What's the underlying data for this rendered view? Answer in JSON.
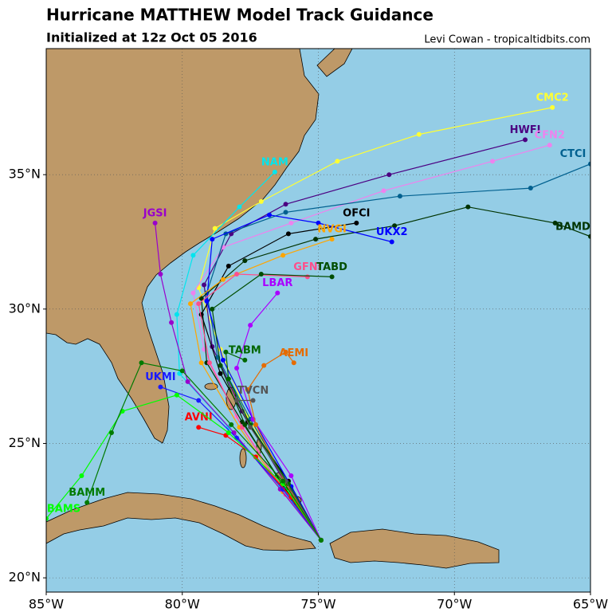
{
  "title": "Hurricane MATTHEW Model Track Guidance",
  "subtitle": "Initialized at 12z Oct 05 2016",
  "credit": "Levi Cowan - tropicaltidbits.com",
  "map": {
    "xlim": [
      -85,
      -65
    ],
    "ylim": [
      19.47,
      39.69
    ],
    "xticks": [
      {
        "value": -85,
        "label": "85°W"
      },
      {
        "value": -80,
        "label": "80°W"
      },
      {
        "value": -75,
        "label": "75°W"
      },
      {
        "value": -70,
        "label": "70°W"
      },
      {
        "value": -65,
        "label": "65°W"
      }
    ],
    "yticks": [
      {
        "value": 20,
        "label": "20°N"
      },
      {
        "value": 25,
        "label": "25°N"
      },
      {
        "value": 30,
        "label": "30°N"
      },
      {
        "value": 35,
        "label": "35°N"
      }
    ],
    "grid": true,
    "tracks": [
      {
        "name": "CMC2",
        "color": "#ffff33",
        "lon": [
          -74.9,
          -76.0,
          -77.6,
          -78.6,
          -79.4,
          -78.8,
          -77.1,
          -74.3,
          -71.3,
          -66.4
        ],
        "lat": [
          21.4,
          23.3,
          26.0,
          28.5,
          30.8,
          33.0,
          34.0,
          35.5,
          36.5,
          37.5
        ]
      },
      {
        "name": "HWFI",
        "color": "#4b0082",
        "lon": [
          -74.9,
          -76.2,
          -77.8,
          -78.9,
          -79.2,
          -78.2,
          -76.2,
          -72.4,
          -67.4
        ],
        "lat": [
          21.4,
          23.5,
          26.2,
          28.6,
          30.9,
          32.8,
          33.9,
          35.0,
          36.3
        ]
      },
      {
        "name": "CFN2",
        "color": "#ee82ee",
        "lon": [
          -74.9,
          -76.4,
          -78.0,
          -79.2,
          -79.6,
          -78.5,
          -76.0,
          -72.6,
          -68.6,
          -66.5
        ],
        "lat": [
          21.4,
          23.4,
          26.0,
          28.5,
          30.6,
          32.3,
          33.2,
          34.4,
          35.5,
          36.1
        ]
      },
      {
        "name": "CTCI",
        "color": "#00608f",
        "lon": [
          -74.9,
          -76.0,
          -77.5,
          -78.7,
          -79.1,
          -78.4,
          -76.2,
          -72.0,
          -67.2,
          -65.0
        ],
        "lat": [
          21.4,
          23.3,
          25.9,
          28.2,
          30.6,
          32.8,
          33.6,
          34.2,
          34.5,
          35.4
        ]
      },
      {
        "name": "BAMD",
        "color": "#003300",
        "lon": [
          -74.9,
          -76.2,
          -77.8,
          -79.1,
          -79.3,
          -77.7,
          -75.1,
          -72.2,
          -69.5,
          -66.3,
          -65.0
        ],
        "lat": [
          21.4,
          23.3,
          25.8,
          28.0,
          30.4,
          31.8,
          32.6,
          33.1,
          33.8,
          33.2,
          32.7
        ]
      },
      {
        "name": "OFCI",
        "color": "#000000",
        "lon": [
          -74.9,
          -76.1,
          -77.6,
          -78.6,
          -79.3,
          -78.3,
          -76.1,
          -73.6
        ],
        "lat": [
          21.4,
          23.6,
          25.8,
          27.6,
          29.8,
          31.6,
          32.8,
          33.2
        ]
      },
      {
        "name": "UKX2",
        "color": "#0000ff",
        "lon": [
          -74.9,
          -76.0,
          -77.4,
          -78.5,
          -79.1,
          -78.9,
          -76.8,
          -75.0,
          -72.3
        ],
        "lat": [
          21.4,
          23.4,
          25.9,
          28.1,
          30.3,
          32.6,
          33.5,
          33.2,
          32.5
        ]
      },
      {
        "name": "NVGI",
        "color": "#ffa500",
        "lon": [
          -74.9,
          -76.3,
          -77.9,
          -79.3,
          -79.7,
          -78.5,
          -76.3,
          -74.5
        ],
        "lat": [
          21.4,
          23.2,
          25.6,
          28.0,
          30.2,
          31.1,
          32.0,
          32.6
        ]
      },
      {
        "name": "GFNI",
        "color": "#ff4f8b",
        "lon": [
          -74.9,
          -76.2,
          -77.8,
          -79.0,
          -79.4,
          -78.0,
          -75.4
        ],
        "lat": [
          21.4,
          23.1,
          25.6,
          28.0,
          30.2,
          31.3,
          31.2
        ]
      },
      {
        "name": "LBAR",
        "color": "#aa00ff",
        "lon": [
          -74.9,
          -76.0,
          -77.4,
          -78.0,
          -77.5,
          -76.5
        ],
        "lat": [
          21.4,
          23.8,
          25.9,
          27.8,
          29.4,
          30.6
        ]
      },
      {
        "name": "TABD",
        "color": "#004d00",
        "lon": [
          -74.9,
          -76.3,
          -77.7,
          -78.6,
          -78.9,
          -77.1,
          -74.5
        ],
        "lat": [
          21.4,
          23.4,
          25.7,
          27.9,
          30.0,
          31.3,
          31.2
        ]
      },
      {
        "name": "AEMI",
        "color": "#e66b00",
        "lon": [
          -74.9,
          -76.2,
          -77.3,
          -77.6,
          -77.0,
          -76.2,
          -75.9
        ],
        "lat": [
          21.4,
          23.5,
          25.7,
          27.0,
          27.9,
          28.4,
          28.0
        ]
      },
      {
        "name": "TABM",
        "color": "#006600",
        "lon": [
          -74.9,
          -76.1,
          -77.5,
          -78.3,
          -78.4,
          -77.7
        ],
        "lat": [
          21.4,
          23.5,
          25.7,
          27.4,
          28.4,
          28.1
        ]
      },
      {
        "name": "TVCN",
        "color": "#555555",
        "lon": [
          -74.9,
          -76.2,
          -77.5,
          -78.0,
          -77.4
        ],
        "lat": [
          21.4,
          23.6,
          25.6,
          26.6,
          26.6
        ]
      },
      {
        "name": "NAM",
        "color": "#00e5ee",
        "lon": [
          -74.9,
          -76.4,
          -78.3,
          -80.1,
          -80.2,
          -79.6,
          -77.9,
          -76.6
        ],
        "lat": [
          21.4,
          23.4,
          25.6,
          27.6,
          29.8,
          32.0,
          33.8,
          35.1
        ]
      },
      {
        "name": "JGSI",
        "color": "#9900cc",
        "lon": [
          -74.9,
          -76.4,
          -78.1,
          -79.8,
          -80.4,
          -80.8,
          -81.0
        ],
        "lat": [
          21.4,
          23.3,
          25.4,
          27.3,
          29.5,
          31.3,
          33.2
        ]
      },
      {
        "name": "UKMI",
        "color": "#1a1aff",
        "lon": [
          -74.9,
          -76.3,
          -78.0,
          -79.4,
          -80.8
        ],
        "lat": [
          21.4,
          23.3,
          25.2,
          26.6,
          27.1
        ]
      },
      {
        "name": "AVNI",
        "color": "#ff0000",
        "lon": [
          -74.9,
          -76.0,
          -77.3,
          -78.4,
          -79.4
        ],
        "lat": [
          21.4,
          23.0,
          24.5,
          25.3,
          25.6
        ]
      },
      {
        "name": "BAMS",
        "color": "#00ff00",
        "lon": [
          -74.9,
          -76.3,
          -78.3,
          -80.2,
          -82.2,
          -83.7,
          -85.0
        ],
        "lat": [
          21.4,
          23.5,
          25.4,
          26.8,
          26.2,
          23.8,
          22.2
        ]
      },
      {
        "name": "BAMM",
        "color": "#007a00",
        "lon": [
          -74.9,
          -76.3,
          -78.2,
          -80.0,
          -81.5,
          -82.6,
          -83.5
        ],
        "lat": [
          21.4,
          23.6,
          25.7,
          27.7,
          28.0,
          25.4,
          22.8
        ]
      }
    ]
  }
}
